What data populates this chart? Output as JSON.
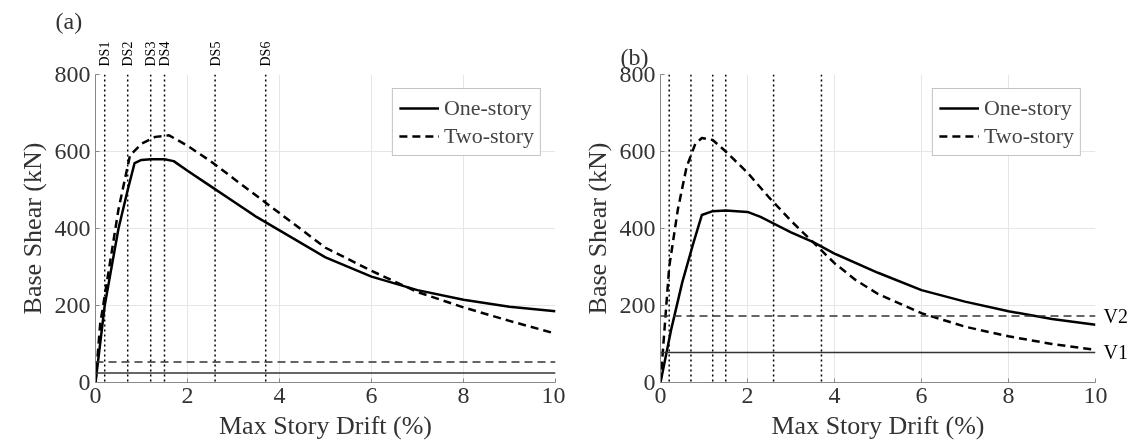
{
  "chart_data": [
    {
      "type": "line",
      "title": "(a)",
      "xlabel": "Max Story Drift (%)",
      "ylabel": "Base Shear (kN)",
      "xlim": [
        0,
        10
      ],
      "ylim": [
        0,
        800
      ],
      "xticks": [
        0,
        2,
        4,
        6,
        8,
        10
      ],
      "yticks": [
        0,
        200,
        400,
        600,
        800
      ],
      "grid": true,
      "legend": "top right",
      "series": [
        {
          "name": "One-story",
          "color": "#000000",
          "line_style": "solid",
          "x": [
            0,
            0.2,
            0.5,
            0.7,
            0.85,
            1.0,
            1.2,
            1.5,
            1.7,
            2.0,
            2.5,
            3.0,
            3.5,
            4,
            5,
            6,
            7,
            8,
            9,
            10
          ],
          "values": [
            0,
            200,
            400,
            500,
            570,
            578,
            580,
            580,
            575,
            550,
            510,
            470,
            430,
            395,
            325,
            275,
            240,
            215,
            197,
            185
          ]
        },
        {
          "name": "Two-story",
          "color": "#000000",
          "line_style": "dashed",
          "x": [
            0,
            0.1,
            0.3,
            0.5,
            0.75,
            1.0,
            1.3,
            1.6,
            2,
            2.5,
            3,
            3.5,
            4,
            5,
            6,
            7,
            8,
            9,
            10
          ],
          "values": [
            0,
            150,
            300,
            450,
            590,
            620,
            638,
            642,
            615,
            575,
            530,
            485,
            440,
            350,
            290,
            235,
            195,
            160,
            127
          ]
        }
      ],
      "ref_lines": [
        {
          "axis": "x",
          "value": 0.2,
          "label": "DS1",
          "line_style": "dotted",
          "color": "#000000"
        },
        {
          "axis": "x",
          "value": 0.7,
          "label": "DS2",
          "line_style": "dotted",
          "color": "#000000"
        },
        {
          "axis": "x",
          "value": 1.2,
          "label": "DS3",
          "line_style": "dotted",
          "color": "#000000"
        },
        {
          "axis": "x",
          "value": 1.5,
          "label": "DS4",
          "line_style": "dotted",
          "color": "#000000"
        },
        {
          "axis": "x",
          "value": 2.6,
          "label": "DS5",
          "line_style": "dotted",
          "color": "#000000"
        },
        {
          "axis": "x",
          "value": 3.7,
          "label": "DS6",
          "line_style": "dotted",
          "color": "#000000"
        },
        {
          "axis": "y",
          "value": 25,
          "line_style": "solid",
          "color": "#333333"
        },
        {
          "axis": "y",
          "value": 53,
          "line_style": "dashed",
          "color": "#333333"
        }
      ]
    },
    {
      "type": "line",
      "title": "(b)",
      "xlabel": "Max Story Drift (%)",
      "ylabel": "Base Shear (kN)",
      "xlim": [
        0,
        10
      ],
      "ylim": [
        0,
        800
      ],
      "xticks": [
        0,
        2,
        4,
        6,
        8,
        10
      ],
      "yticks": [
        0,
        200,
        400,
        600,
        800
      ],
      "grid": true,
      "legend": "top right",
      "series": [
        {
          "name": "One-story",
          "color": "#000000",
          "line_style": "solid",
          "x": [
            0,
            0.25,
            0.5,
            0.75,
            0.95,
            1.2,
            1.5,
            2,
            2.3,
            3,
            3.5,
            4,
            5,
            6,
            7,
            8,
            9,
            10
          ],
          "values": [
            0,
            140,
            260,
            360,
            435,
            445,
            447,
            443,
            430,
            390,
            365,
            335,
            285,
            240,
            210,
            185,
            165,
            150
          ]
        },
        {
          "name": "Two-story",
          "color": "#000000",
          "line_style": "dashed",
          "x": [
            0,
            0.1,
            0.2,
            0.4,
            0.6,
            0.8,
            0.95,
            1.2,
            1.5,
            2,
            2.5,
            3,
            3.5,
            4,
            4.5,
            5,
            6,
            7,
            8,
            9,
            10
          ],
          "values": [
            0,
            150,
            300,
            450,
            560,
            620,
            635,
            630,
            600,
            545,
            480,
            420,
            365,
            310,
            265,
            230,
            180,
            145,
            120,
            100,
            85
          ]
        }
      ],
      "ref_lines": [
        {
          "axis": "x",
          "value": 0.2,
          "line_style": "dotted",
          "color": "#000000"
        },
        {
          "axis": "x",
          "value": 0.7,
          "line_style": "dotted",
          "color": "#000000"
        },
        {
          "axis": "x",
          "value": 1.2,
          "line_style": "dotted",
          "color": "#000000"
        },
        {
          "axis": "x",
          "value": 1.5,
          "line_style": "dotted",
          "color": "#000000"
        },
        {
          "axis": "x",
          "value": 2.6,
          "line_style": "dotted",
          "color": "#000000"
        },
        {
          "axis": "x",
          "value": 3.7,
          "line_style": "dotted",
          "color": "#000000"
        },
        {
          "axis": "y",
          "value": 78,
          "label": "V1",
          "line_style": "solid",
          "color": "#333333"
        },
        {
          "axis": "y",
          "value": 173,
          "label": "V2",
          "line_style": "dashed",
          "color": "#333333"
        }
      ]
    }
  ]
}
